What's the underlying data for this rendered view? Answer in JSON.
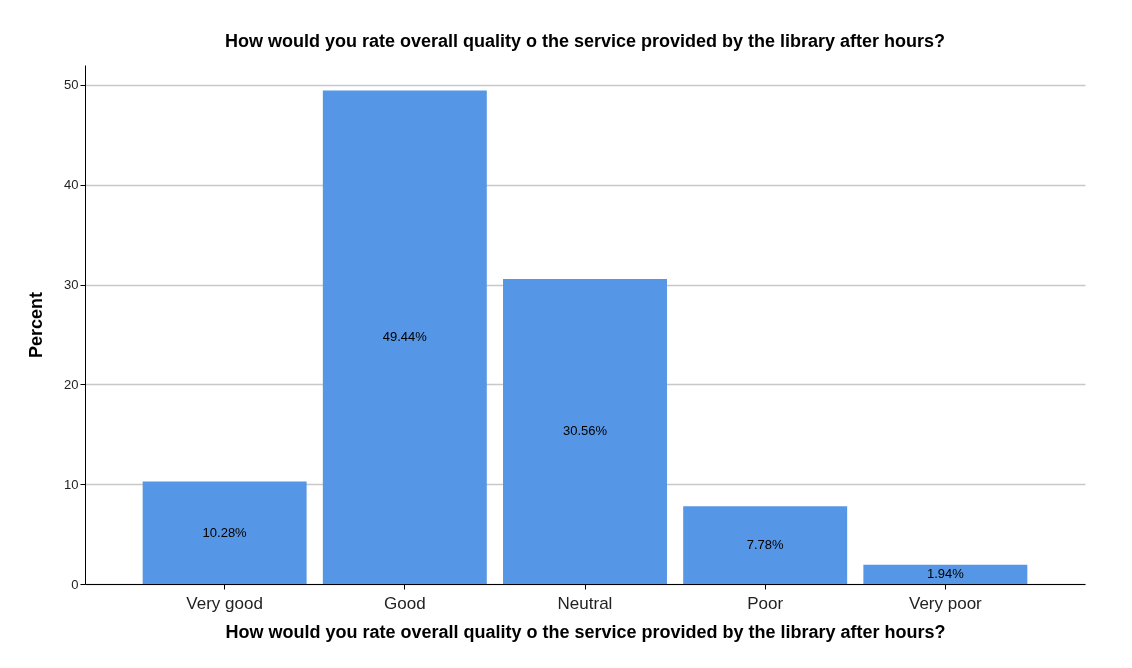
{
  "chart_data": {
    "type": "bar",
    "title": "How would you rate overall quality o the service provided by the library after hours?",
    "xlabel": "How would you rate overall quality o the service provided by the library after hours?",
    "ylabel": "Percent",
    "categories": [
      "Very good",
      "Good",
      "Neutral",
      "Poor",
      "Very poor"
    ],
    "values": [
      10.28,
      49.44,
      30.56,
      7.78,
      1.94
    ],
    "value_labels": [
      "10.28%",
      "49.44%",
      "30.56%",
      "7.78%",
      "1.94%"
    ],
    "color": "#5596e6",
    "ylim": [
      0,
      52
    ],
    "yticks": [
      0,
      10,
      20,
      30,
      40,
      50
    ],
    "grid": "y"
  }
}
